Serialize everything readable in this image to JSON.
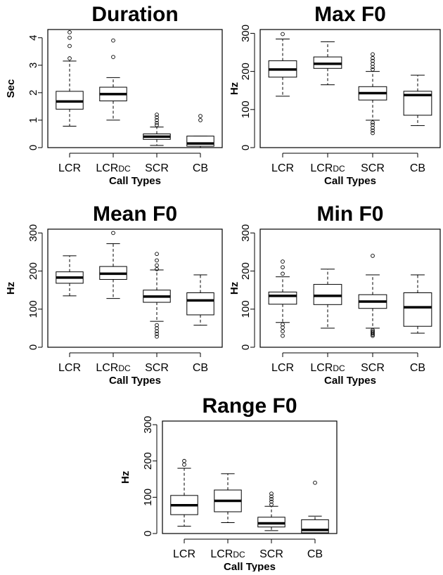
{
  "chart_data": [
    {
      "type": "boxplot",
      "title": "Duration",
      "ylabel": "Sec",
      "xlabel": "Call Types",
      "categories": [
        {
          "main": "LCR",
          "sub": ""
        },
        {
          "main": "LCR",
          "sub": "DC"
        },
        {
          "main": "SCR",
          "sub": ""
        },
        {
          "main": "CB",
          "sub": ""
        }
      ],
      "ylim": [
        0,
        4.3
      ],
      "yticks": [
        0,
        1,
        2,
        3,
        4
      ],
      "boxes": [
        {
          "whisker_low": 0.78,
          "q1": 1.4,
          "median": 1.68,
          "q3": 2.05,
          "whisker_high": 3.15,
          "outliers": [
            3.25,
            3.7,
            4.0,
            4.2
          ]
        },
        {
          "whisker_low": 1.0,
          "q1": 1.7,
          "median": 1.95,
          "q3": 2.2,
          "whisker_high": 2.55,
          "outliers": [
            3.3,
            3.9
          ]
        },
        {
          "whisker_low": 0.08,
          "q1": 0.3,
          "median": 0.4,
          "q3": 0.5,
          "whisker_high": 0.75,
          "outliers": [
            0.82,
            0.9,
            1.0,
            1.1,
            1.2
          ]
        },
        {
          "whisker_low": 0.0,
          "q1": 0.05,
          "median": 0.15,
          "q3": 0.42,
          "whisker_high": 0.42,
          "outliers": [
            1.0,
            1.15
          ]
        }
      ]
    },
    {
      "type": "boxplot",
      "title": "Max F0",
      "ylabel": "Hz",
      "xlabel": "Call Types",
      "categories": [
        {
          "main": "LCR",
          "sub": ""
        },
        {
          "main": "LCR",
          "sub": "DC"
        },
        {
          "main": "SCR",
          "sub": ""
        },
        {
          "main": "CB",
          "sub": ""
        }
      ],
      "ylim": [
        0,
        310
      ],
      "yticks": [
        0,
        100,
        200,
        300
      ],
      "boxes": [
        {
          "whisker_low": 135,
          "q1": 185,
          "median": 205,
          "q3": 228,
          "whisker_high": 285,
          "outliers": [
            298
          ]
        },
        {
          "whisker_low": 165,
          "q1": 208,
          "median": 220,
          "q3": 238,
          "whisker_high": 278,
          "outliers": []
        },
        {
          "whisker_low": 72,
          "q1": 125,
          "median": 143,
          "q3": 160,
          "whisker_high": 200,
          "outliers": [
            38,
            45,
            52,
            60,
            66,
            205,
            212,
            220,
            228,
            235,
            245
          ]
        },
        {
          "whisker_low": 58,
          "q1": 85,
          "median": 138,
          "q3": 148,
          "whisker_high": 190,
          "outliers": []
        }
      ]
    },
    {
      "type": "boxplot",
      "title": "Mean F0",
      "ylabel": "Hz",
      "xlabel": "Call Types",
      "categories": [
        {
          "main": "LCR",
          "sub": ""
        },
        {
          "main": "LCR",
          "sub": "DC"
        },
        {
          "main": "SCR",
          "sub": ""
        },
        {
          "main": "CB",
          "sub": ""
        }
      ],
      "ylim": [
        0,
        310
      ],
      "yticks": [
        0,
        100,
        200,
        300
      ],
      "boxes": [
        {
          "whisker_low": 135,
          "q1": 168,
          "median": 183,
          "q3": 198,
          "whisker_high": 240,
          "outliers": []
        },
        {
          "whisker_low": 128,
          "q1": 178,
          "median": 193,
          "q3": 212,
          "whisker_high": 272,
          "outliers": [
            300
          ]
        },
        {
          "whisker_low": 68,
          "q1": 118,
          "median": 133,
          "q3": 150,
          "whisker_high": 203,
          "outliers": [
            28,
            35,
            42,
            50,
            58,
            205,
            215,
            228,
            245
          ]
        },
        {
          "whisker_low": 58,
          "q1": 85,
          "median": 123,
          "q3": 143,
          "whisker_high": 190,
          "outliers": []
        }
      ]
    },
    {
      "type": "boxplot",
      "title": "Min F0",
      "ylabel": "Hz",
      "xlabel": "Call Types",
      "categories": [
        {
          "main": "LCR",
          "sub": ""
        },
        {
          "main": "LCR",
          "sub": "DC"
        },
        {
          "main": "SCR",
          "sub": ""
        },
        {
          "main": "CB",
          "sub": ""
        }
      ],
      "ylim": [
        0,
        310
      ],
      "yticks": [
        0,
        100,
        200,
        300
      ],
      "boxes": [
        {
          "whisker_low": 65,
          "q1": 113,
          "median": 135,
          "q3": 145,
          "whisker_high": 185,
          "outliers": [
            30,
            42,
            52,
            60,
            193,
            210,
            225
          ]
        },
        {
          "whisker_low": 50,
          "q1": 112,
          "median": 135,
          "q3": 165,
          "whisker_high": 205,
          "outliers": []
        },
        {
          "whisker_low": 50,
          "q1": 102,
          "median": 120,
          "q3": 138,
          "whisker_high": 190,
          "outliers": [
            30,
            33,
            36,
            39,
            42,
            45,
            240
          ]
        },
        {
          "whisker_low": 37,
          "q1": 55,
          "median": 105,
          "q3": 143,
          "whisker_high": 190,
          "outliers": []
        }
      ]
    },
    {
      "type": "boxplot",
      "title": "Range F0",
      "ylabel": "Hz",
      "xlabel": "Call Types",
      "categories": [
        {
          "main": "LCR",
          "sub": ""
        },
        {
          "main": "LCR",
          "sub": "DC"
        },
        {
          "main": "SCR",
          "sub": ""
        },
        {
          "main": "CB",
          "sub": ""
        }
      ],
      "ylim": [
        0,
        310
      ],
      "yticks": [
        0,
        100,
        200,
        300
      ],
      "boxes": [
        {
          "whisker_low": 20,
          "q1": 52,
          "median": 78,
          "q3": 105,
          "whisker_high": 180,
          "outliers": [
            190,
            200
          ]
        },
        {
          "whisker_low": 30,
          "q1": 60,
          "median": 90,
          "q3": 120,
          "whisker_high": 165,
          "outliers": []
        },
        {
          "whisker_low": 8,
          "q1": 18,
          "median": 28,
          "q3": 45,
          "whisker_high": 75,
          "outliers": [
            80,
            88,
            95,
            102,
            110
          ]
        },
        {
          "whisker_low": 0,
          "q1": 2,
          "median": 10,
          "q3": 38,
          "whisker_high": 48,
          "outliers": [
            140
          ]
        }
      ]
    }
  ]
}
